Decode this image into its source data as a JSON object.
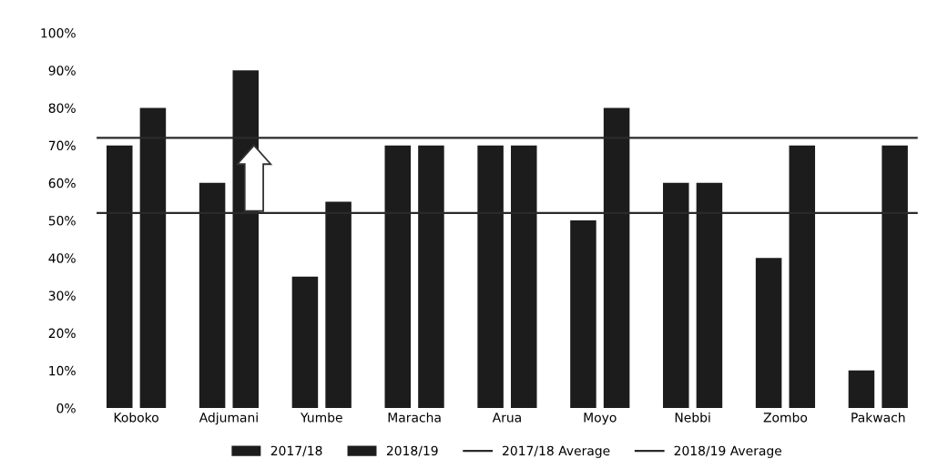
{
  "chart_data": {
    "type": "bar",
    "categories": [
      "Koboko",
      "Adjumani",
      "Yumbe",
      "Maracha",
      "Arua",
      "Moyo",
      "Nebbi",
      "Zombo",
      "Pakwach"
    ],
    "series": [
      {
        "name": "2017/18",
        "color": "#1c1c1c",
        "values": [
          70,
          60,
          35,
          70,
          70,
          50,
          60,
          40,
          10
        ]
      },
      {
        "name": "2018/19",
        "color": "#1c1c1c",
        "values": [
          80,
          90,
          55,
          70,
          70,
          80,
          60,
          70,
          70
        ]
      }
    ],
    "ref_lines": [
      {
        "axis": "y",
        "value": 52,
        "label": "2017/18 Average",
        "color": "#2a2a2a",
        "line_style": "solid"
      },
      {
        "axis": "y",
        "value": 72,
        "label": "2018/19 Average",
        "color": "#2a2a2a",
        "line_style": "solid"
      }
    ],
    "ylim": [
      0,
      100
    ],
    "yticks": [
      {
        "value": 0,
        "label": "0%"
      },
      {
        "value": 10,
        "label": "10%"
      },
      {
        "value": 20,
        "label": "20%"
      },
      {
        "value": 30,
        "label": "30%"
      },
      {
        "value": 40,
        "label": "40%"
      },
      {
        "value": 50,
        "label": "50%"
      },
      {
        "value": 60,
        "label": "60%"
      },
      {
        "value": 70,
        "label": "70%"
      },
      {
        "value": 80,
        "label": "80%"
      },
      {
        "value": 90,
        "label": "90%"
      },
      {
        "value": 100,
        "label": "100%"
      }
    ],
    "legend": "bottom"
  }
}
